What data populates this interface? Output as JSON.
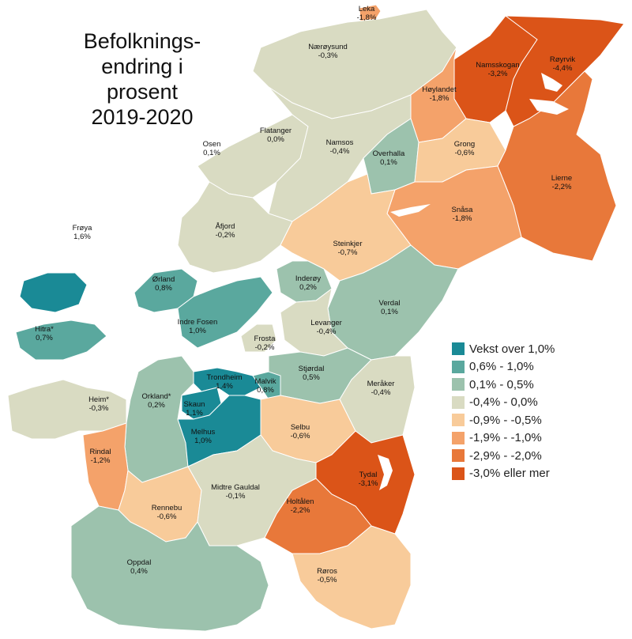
{
  "title_lines": [
    "Befolknings-",
    "endring i",
    "prosent",
    "2019-2020"
  ],
  "legend": [
    {
      "label": "Vekst over 1,0%",
      "color": "#1a8a96"
    },
    {
      "label": "0,6% - 1,0%",
      "color": "#5aa89e"
    },
    {
      "label": "0,1% - 0,5%",
      "color": "#9cc2ad"
    },
    {
      "label": "-0,4% - 0,0%",
      "color": "#d9dbc2"
    },
    {
      "label": "-0,9% - -0,5%",
      "color": "#f8cb9a"
    },
    {
      "label": "-1,9% - -1,0%",
      "color": "#f4a26a"
    },
    {
      "label": "-2,9% - -2,0%",
      "color": "#e8783a"
    },
    {
      "label": "-3,0% eller mer",
      "color": "#db5418"
    }
  ],
  "municipalities": [
    {
      "name": "Leka",
      "value": "-1,8%",
      "class": 5
    },
    {
      "name": "Nærøysund",
      "value": "-0,3%",
      "class": 3
    },
    {
      "name": "Namsskogan",
      "value": "-3,2%",
      "class": 7
    },
    {
      "name": "Røyrvik",
      "value": "-4,4%",
      "class": 7
    },
    {
      "name": "Høylandet",
      "value": "-1,8%",
      "class": 5
    },
    {
      "name": "Flatanger",
      "value": "0,0%",
      "class": 3
    },
    {
      "name": "Osen",
      "value": "0,1%",
      "class": 2
    },
    {
      "name": "Namsos",
      "value": "-0,4%",
      "class": 3
    },
    {
      "name": "Overhalla",
      "value": "0,1%",
      "class": 2
    },
    {
      "name": "Grong",
      "value": "-0,6%",
      "class": 4
    },
    {
      "name": "Lierne",
      "value": "-2,2%",
      "class": 6
    },
    {
      "name": "Snåsa",
      "value": "-1,8%",
      "class": 5
    },
    {
      "name": "Frøya",
      "value": "1,6%",
      "class": 0
    },
    {
      "name": "Åfjord",
      "value": "-0,2%",
      "class": 3
    },
    {
      "name": "Steinkjer",
      "value": "-0,7%",
      "class": 4
    },
    {
      "name": "Ørland",
      "value": "0,8%",
      "class": 1
    },
    {
      "name": "Inderøy",
      "value": "0,2%",
      "class": 2
    },
    {
      "name": "Verdal",
      "value": "0,1%",
      "class": 2
    },
    {
      "name": "Indre Fosen",
      "value": "1,0%",
      "class": 1
    },
    {
      "name": "Hitra*",
      "value": "0,7%",
      "class": 1
    },
    {
      "name": "Levanger",
      "value": "-0,4%",
      "class": 3
    },
    {
      "name": "Frosta",
      "value": "-0,2%",
      "class": 3
    },
    {
      "name": "Stjørdal",
      "value": "0,5%",
      "class": 2
    },
    {
      "name": "Trondheim",
      "value": "1,4%",
      "class": 0
    },
    {
      "name": "Malvik",
      "value": "0,8%",
      "class": 1
    },
    {
      "name": "Meråker",
      "value": "-0,4%",
      "class": 3
    },
    {
      "name": "Orkland*",
      "value": "0,2%",
      "class": 2
    },
    {
      "name": "Heim*",
      "value": "-0,3%",
      "class": 3
    },
    {
      "name": "Skaun",
      "value": "1,1%",
      "class": 0
    },
    {
      "name": "Melhus",
      "value": "1,0%",
      "class": 0
    },
    {
      "name": "Selbu",
      "value": "-0,6%",
      "class": 4
    },
    {
      "name": "Rindal",
      "value": "-1,2%",
      "class": 5
    },
    {
      "name": "Tydal",
      "value": "-3,1%",
      "class": 7
    },
    {
      "name": "Rennebu",
      "value": "-0,6%",
      "class": 4
    },
    {
      "name": "Midtre Gauldal",
      "value": "-0,1%",
      "class": 3
    },
    {
      "name": "Holtålen",
      "value": "-2,2%",
      "class": 6
    },
    {
      "name": "Røros",
      "value": "-0,5%",
      "class": 4
    },
    {
      "name": "Oppdal",
      "value": "0,4%",
      "class": 2
    }
  ]
}
